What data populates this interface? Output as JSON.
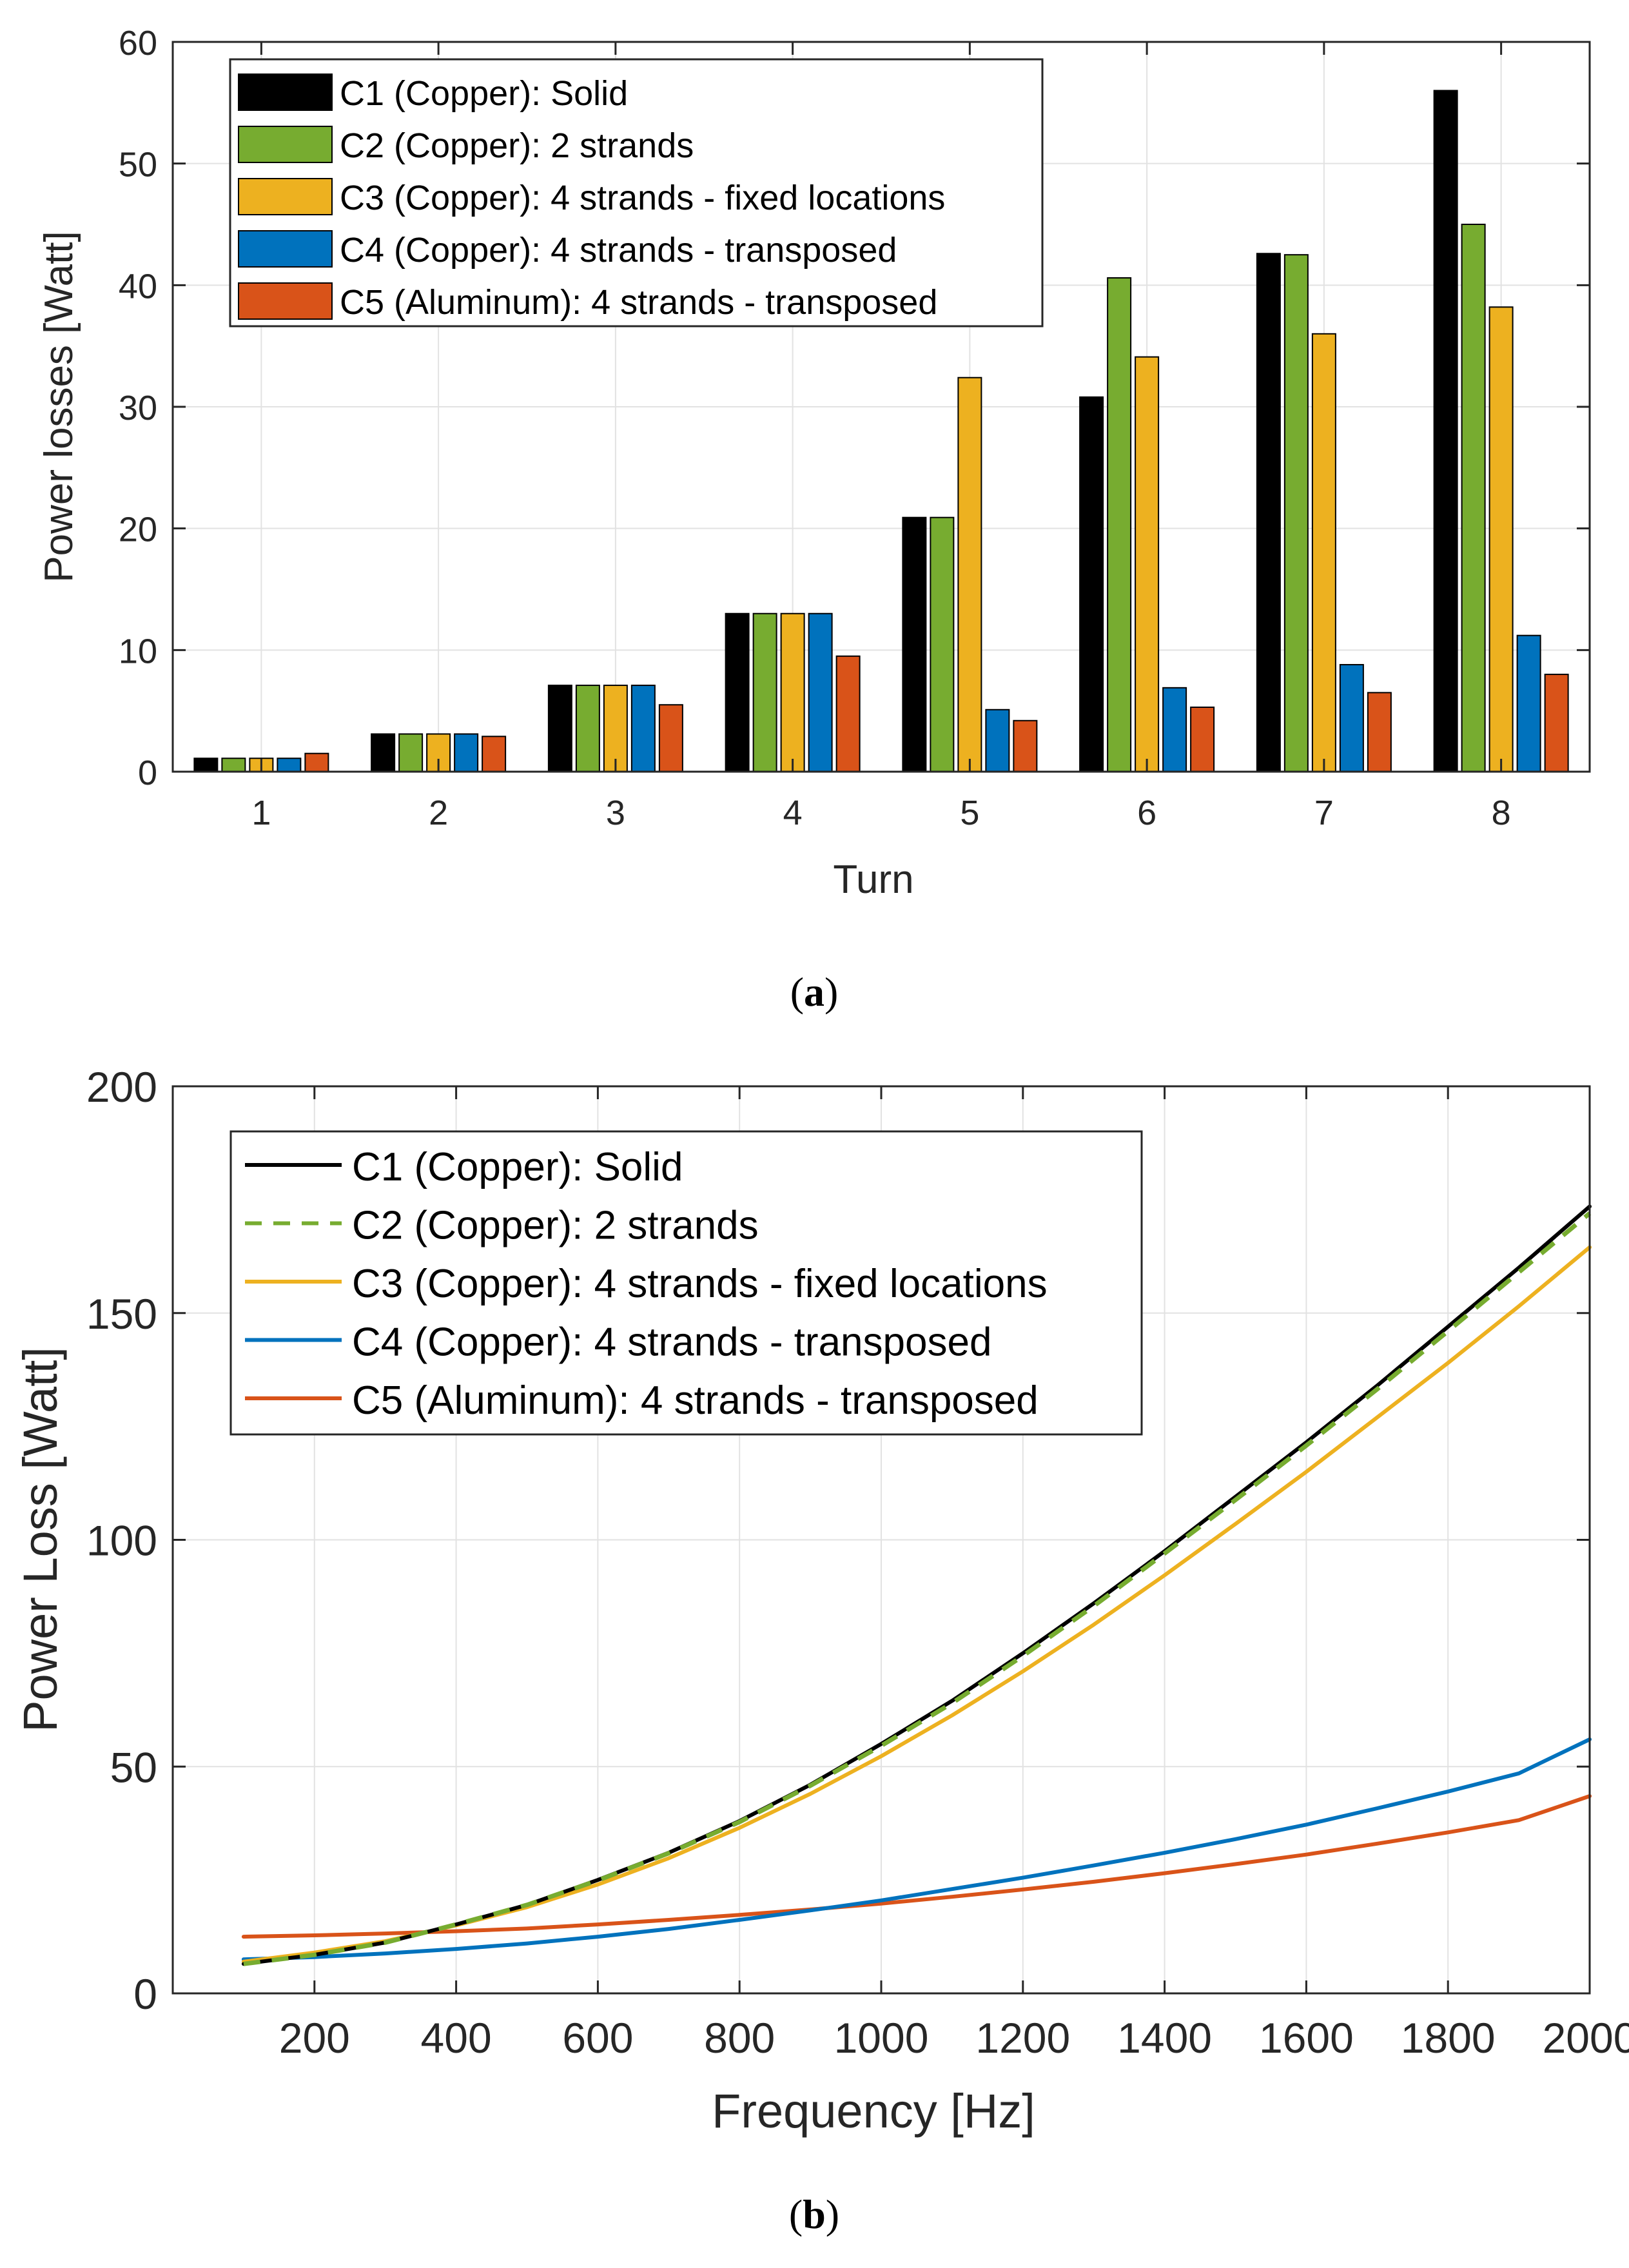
{
  "colors": {
    "c1": "#000000",
    "c2": "#77AC30",
    "c3": "#EDB120",
    "c4": "#0072BD",
    "c5": "#D95319",
    "grid": "#e2e2e2",
    "axis": "#262626"
  },
  "chart_data": [
    {
      "type": "bar",
      "title": "",
      "caption_open": "(",
      "caption_letter": "a",
      "caption_close": ")",
      "xlabel": "Turn",
      "ylabel": "Power losses [Watt]",
      "ylim": [
        0,
        60
      ],
      "yticks": [
        0,
        10,
        20,
        30,
        40,
        50,
        60
      ],
      "grid": true,
      "legend_location": "top-left",
      "categories": [
        "1",
        "2",
        "3",
        "4",
        "5",
        "6",
        "7",
        "8"
      ],
      "series": [
        {
          "key": "c1",
          "name": "C1 (Copper): Solid",
          "values": [
            1.1,
            3.1,
            7.1,
            13.0,
            20.9,
            30.8,
            42.6,
            56.0
          ]
        },
        {
          "key": "c2",
          "name": "C2 (Copper): 2 strands",
          "values": [
            1.1,
            3.1,
            7.1,
            13.0,
            20.9,
            40.6,
            42.5,
            45.0
          ]
        },
        {
          "key": "c3",
          "name": "C3 (Copper): 4 strands - fixed locations",
          "values": [
            1.1,
            3.1,
            7.1,
            13.0,
            32.4,
            34.1,
            36.0,
            38.2
          ]
        },
        {
          "key": "c4",
          "name": "C4 (Copper): 4 strands - transposed",
          "values": [
            1.1,
            3.1,
            7.1,
            13.0,
            5.1,
            6.9,
            8.8,
            11.2
          ]
        },
        {
          "key": "c5",
          "name": "C5 (Aluminum): 4 strands - transposed",
          "values": [
            1.5,
            2.9,
            5.5,
            9.5,
            4.2,
            5.3,
            6.5,
            8.0
          ]
        }
      ]
    },
    {
      "type": "line",
      "title": "",
      "caption_open": "(",
      "caption_letter": "b",
      "caption_close": ")",
      "xlabel": "Frequency [Hz]",
      "ylabel": "Power Loss [Watt]",
      "xlim": [
        0,
        2000
      ],
      "ylim": [
        0,
        200
      ],
      "xticks": [
        200,
        400,
        600,
        800,
        1000,
        1200,
        1400,
        1600,
        1800,
        2000
      ],
      "yticks": [
        0,
        50,
        100,
        150,
        200
      ],
      "grid": true,
      "legend_location": "top-left",
      "x": [
        100,
        200,
        300,
        400,
        500,
        600,
        700,
        800,
        900,
        1000,
        1100,
        1200,
        1300,
        1400,
        1500,
        1600,
        1700,
        1800,
        1900,
        2000
      ],
      "series": [
        {
          "key": "c1",
          "name": "C1 (Copper): Solid",
          "dashed": false,
          "values": [
            6.5,
            8.5,
            11.2,
            15.2,
            19.5,
            25.0,
            31.0,
            38.0,
            46.0,
            55.0,
            64.5,
            75.0,
            86.0,
            97.5,
            109.5,
            121.5,
            134.0,
            147.0,
            160.0,
            173.5
          ]
        },
        {
          "key": "c2",
          "name": "C2 (Copper): 2 strands",
          "dashed": true,
          "values": [
            6.5,
            8.5,
            11.2,
            15.2,
            19.5,
            24.9,
            30.9,
            37.8,
            45.8,
            54.6,
            64.0,
            74.4,
            85.4,
            97.0,
            108.8,
            120.8,
            133.2,
            146.0,
            159.0,
            172.0
          ]
        },
        {
          "key": "c3",
          "name": "C3 (Copper): 4 strands - fixed locations",
          "dashed": false,
          "values": [
            7.0,
            9.0,
            11.5,
            15.0,
            19.0,
            24.0,
            29.8,
            36.5,
            44.0,
            52.3,
            61.3,
            71.0,
            81.3,
            92.2,
            103.5,
            115.0,
            127.0,
            139.0,
            151.5,
            164.5
          ]
        },
        {
          "key": "c4",
          "name": "C4 (Copper): 4 strands - transposed",
          "dashed": false,
          "values": [
            7.5,
            8.0,
            8.8,
            9.8,
            11.0,
            12.5,
            14.2,
            16.2,
            18.3,
            20.5,
            23.0,
            25.5,
            28.2,
            31.0,
            34.0,
            37.2,
            40.8,
            44.5,
            48.5,
            56.0
          ]
        },
        {
          "key": "c5",
          "name": "C5 (Aluminum): 4 strands - transposed",
          "dashed": false,
          "values": [
            12.5,
            12.8,
            13.2,
            13.7,
            14.3,
            15.2,
            16.2,
            17.3,
            18.5,
            19.8,
            21.3,
            22.9,
            24.6,
            26.5,
            28.5,
            30.6,
            33.0,
            35.5,
            38.2,
            43.5
          ]
        }
      ]
    }
  ]
}
